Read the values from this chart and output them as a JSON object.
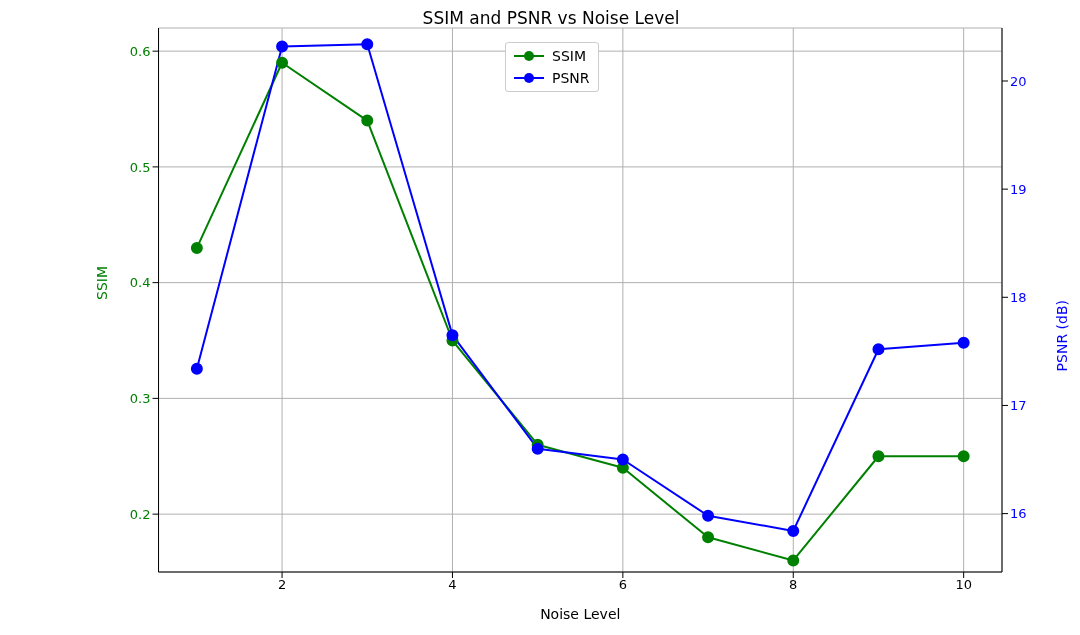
{
  "chart_data": {
    "type": "line",
    "title": "SSIM and PSNR vs Noise Level",
    "xlabel": "Noise Level",
    "ylabel": "SSIM",
    "y2label": "PSNR (dB)",
    "x": [
      1,
      2,
      3,
      4,
      5,
      6,
      7,
      8,
      9,
      10
    ],
    "series": [
      {
        "name": "SSIM",
        "color": "#008000",
        "values": [
          0.43,
          0.59,
          0.54,
          0.35,
          0.26,
          0.24,
          0.18,
          0.16,
          0.25,
          0.25
        ]
      },
      {
        "name": "PSNR",
        "color": "#0000ff",
        "axis": "y2",
        "values": [
          17.34,
          20.32,
          20.34,
          17.65,
          16.6,
          16.5,
          15.98,
          15.84,
          17.52,
          17.58
        ]
      }
    ],
    "xlim": [
      0.55,
      10.45
    ],
    "xticks": [
      2,
      4,
      6,
      8,
      10
    ],
    "ylim": [
      0.15,
      0.62
    ],
    "yticks": [
      0.2,
      0.3,
      0.4,
      0.5,
      0.6
    ],
    "y2lim": [
      15.46,
      20.49
    ],
    "y2ticks": [
      16,
      17,
      18,
      19,
      20
    ],
    "grid": true,
    "legend": "top",
    "marker": "circle",
    "line_style": "solid"
  }
}
